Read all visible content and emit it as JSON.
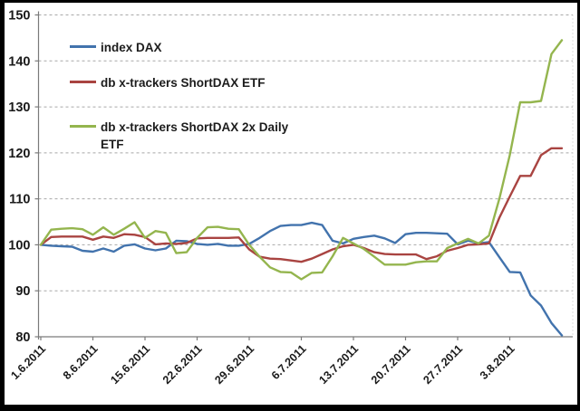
{
  "chart_data": {
    "type": "line",
    "title": "",
    "xlabel": "",
    "ylabel": "",
    "ylim": [
      80,
      150
    ],
    "y_ticks": [
      80,
      90,
      100,
      110,
      120,
      130,
      140,
      150
    ],
    "grid": "horizontal-dashed",
    "legend_position": "top-left-inside-plot",
    "x_tick_labels": [
      "1.6.2011",
      "8.6.2011",
      "15.6.2011",
      "22.6.2011",
      "29.6.2011",
      "6.7.2011",
      "13.7.2011",
      "20.7.2011",
      "27.7.2011",
      "3.8.2011"
    ],
    "x_tick_indices": [
      0,
      5,
      10,
      15,
      20,
      25,
      30,
      35,
      40,
      45
    ],
    "n_points": 51,
    "x_range_dates": "1.6.2011 to 10.8.2011 (trading days)",
    "series": [
      {
        "name": "index DAX",
        "color": "#4273AD",
        "values": [
          100.0,
          99.8,
          99.7,
          99.6,
          98.7,
          98.5,
          99.2,
          98.5,
          99.8,
          100.1,
          99.2,
          98.8,
          99.2,
          100.9,
          100.8,
          100.2,
          100.0,
          100.2,
          99.8,
          99.8,
          100.2,
          101.5,
          103.0,
          104.1,
          104.3,
          104.3,
          104.8,
          104.3,
          100.9,
          100.3,
          101.3,
          101.7,
          102.0,
          101.4,
          100.4,
          102.3,
          102.6,
          102.6,
          102.5,
          102.4,
          100.1,
          100.9,
          100.3,
          100.6,
          97.3,
          94.1,
          94.0,
          89.0,
          86.8,
          83.0,
          80.3
        ]
      },
      {
        "name": "db x-trackers ShortDAX ETF",
        "color": "#A94441",
        "values": [
          100.0,
          101.7,
          101.8,
          101.8,
          101.8,
          101.1,
          101.8,
          101.5,
          102.3,
          102.2,
          101.7,
          100.1,
          100.3,
          100.2,
          100.4,
          101.4,
          101.5,
          101.5,
          101.5,
          101.6,
          99.0,
          97.4,
          97.0,
          96.9,
          96.6,
          96.3,
          97.0,
          98.0,
          99.0,
          99.7,
          100.0,
          99.3,
          98.4,
          98.0,
          97.9,
          97.9,
          97.9,
          96.9,
          97.5,
          98.7,
          99.3,
          100.0,
          100.1,
          100.3,
          105.9,
          110.5,
          115.0,
          115.0,
          119.5,
          121.0,
          121.0
        ]
      },
      {
        "name": "db x-trackers ShortDAX 2x Daily ETF",
        "color": "#94B54E",
        "values": [
          100.0,
          103.3,
          103.5,
          103.6,
          103.4,
          102.2,
          103.8,
          102.2,
          103.5,
          104.9,
          101.5,
          103.0,
          102.6,
          98.2,
          98.4,
          101.5,
          103.8,
          103.9,
          103.5,
          103.4,
          100.0,
          97.4,
          95.1,
          94.1,
          94.0,
          92.5,
          93.9,
          94.0,
          97.5,
          101.5,
          100.3,
          99.1,
          97.4,
          95.7,
          95.7,
          95.7,
          96.2,
          96.4,
          96.4,
          99.3,
          100.3,
          101.3,
          100.3,
          102.0,
          110.0,
          119.5,
          131.0,
          131.0,
          131.3,
          141.5,
          144.5
        ]
      }
    ],
    "legend": [
      {
        "label": "index DAX",
        "color": "#4273AD"
      },
      {
        "label": "db x-trackers ShortDAX ETF",
        "color": "#A94441"
      },
      {
        "label": "db x-trackers ShortDAX 2x Daily ETF",
        "color": "#94B54E"
      }
    ]
  },
  "style_colors": {
    "gridline": "#A8A8A8",
    "axis": "#7a7a7a",
    "tick_text": "#1a1a1a",
    "plot_background": "#FFFFFF",
    "frame_border": "#000000"
  }
}
